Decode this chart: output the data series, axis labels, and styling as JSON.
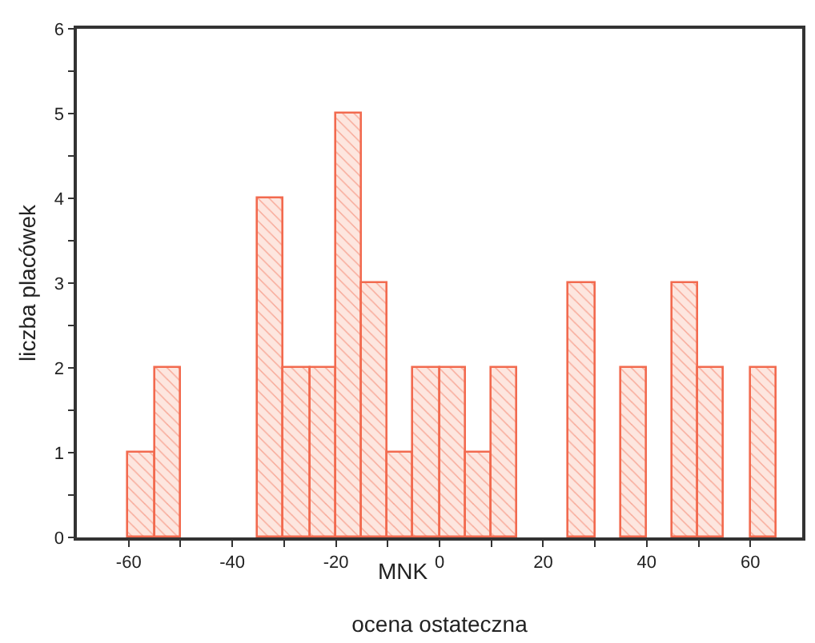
{
  "chart_data": {
    "type": "histogram",
    "xlabel": "ocena ostateczna",
    "ylabel": "liczba placówek",
    "annotations": [
      "MNK"
    ],
    "bins": [
      -60,
      -55,
      -50,
      -45,
      -40,
      -35,
      -30,
      -25,
      -20,
      -15,
      -10,
      -5,
      0,
      5,
      10,
      15,
      20,
      25,
      30,
      35,
      40,
      45,
      50,
      55,
      60,
      65
    ],
    "values": [
      1,
      2,
      0,
      0,
      0,
      4,
      2,
      2,
      5,
      3,
      1,
      2,
      2,
      1,
      2,
      0,
      0,
      3,
      0,
      2,
      0,
      3,
      2,
      0,
      2
    ],
    "color": "#f26a4f",
    "xlim": [
      -70,
      70
    ],
    "xticks": [
      -60,
      {
        "value": -50,
        "label": null
      },
      -40,
      {
        "value": -30,
        "label": null
      },
      -20,
      {
        "value": -10,
        "label": null
      },
      0,
      {
        "value": 10,
        "label": null
      },
      20,
      {
        "value": 30,
        "label": null
      },
      40,
      {
        "value": 50,
        "label": null
      },
      60
    ],
    "ylim": [
      0,
      6
    ],
    "yticks": [
      0,
      {
        "value": 0.5,
        "label": null
      },
      1,
      {
        "value": 1.5,
        "label": null
      },
      2,
      {
        "value": 2.5,
        "label": null
      },
      3,
      {
        "value": 3.5,
        "label": null
      },
      4,
      {
        "value": 4.5,
        "label": null
      },
      5,
      {
        "value": 5.5,
        "label": null
      },
      6
    ],
    "legend": false
  }
}
